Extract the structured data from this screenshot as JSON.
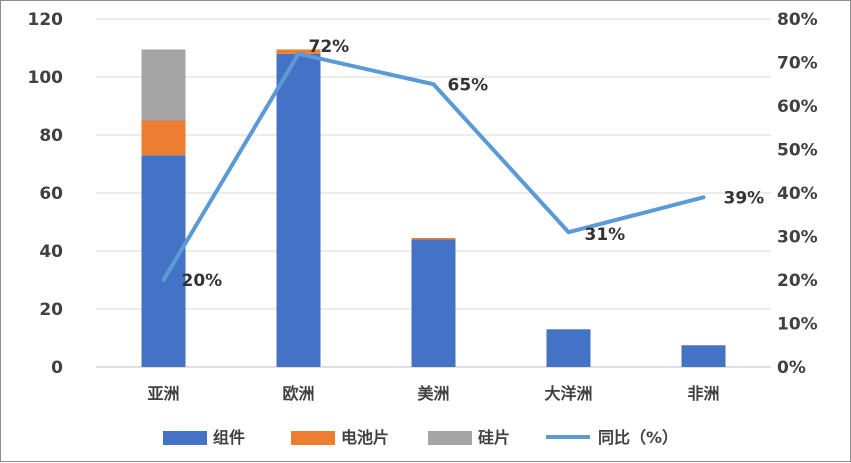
{
  "chart_data": {
    "type": "bar",
    "stacked": true,
    "categories": [
      "亚洲",
      "欧洲",
      "美洲",
      "大洋洲",
      "非洲"
    ],
    "series": [
      {
        "name": "组件",
        "type": "bar",
        "axis": "left",
        "color": "#4472C4",
        "values": [
          73,
          108,
          44,
          13,
          7.5
        ]
      },
      {
        "name": "电池片",
        "type": "bar",
        "axis": "left",
        "color": "#ED7D31",
        "values": [
          12,
          1.5,
          0.5,
          0,
          0
        ]
      },
      {
        "name": "硅片",
        "type": "bar",
        "axis": "left",
        "color": "#A5A5A5",
        "values": [
          24.5,
          0,
          0,
          0,
          0
        ]
      },
      {
        "name": "同比（%）",
        "type": "line",
        "axis": "right",
        "color": "#5B9BD5",
        "values": [
          20,
          72,
          65,
          31,
          39
        ]
      }
    ],
    "data_labels": [
      "20%",
      "72%",
      "65%",
      "31%",
      "39%"
    ],
    "y_left": {
      "min": 0,
      "max": 120,
      "ticks": [
        "0",
        "20",
        "40",
        "60",
        "80",
        "100",
        "120"
      ]
    },
    "y_right": {
      "min": 0,
      "max": 80,
      "ticks": [
        "0%",
        "10%",
        "20%",
        "30%",
        "40%",
        "50%",
        "60%",
        "70%",
        "80%"
      ]
    },
    "grid": true,
    "legend_position": "bottom"
  }
}
